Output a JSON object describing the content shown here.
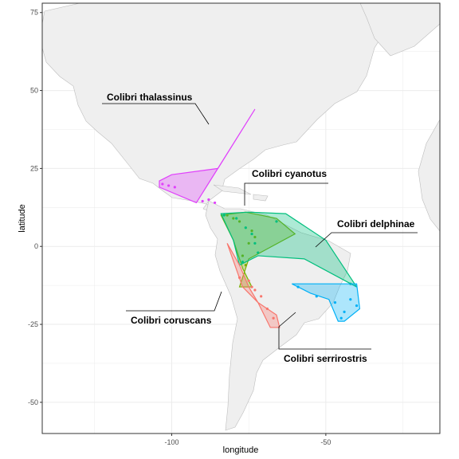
{
  "axes": {
    "x_label": "longitude",
    "y_label": "latitude",
    "x_ticks": [
      {
        "value": -100,
        "label": "-100"
      },
      {
        "value": -50,
        "label": "-50"
      }
    ],
    "y_ticks": [
      {
        "value": 75,
        "label": "75"
      },
      {
        "value": 50,
        "label": "50"
      },
      {
        "value": 25,
        "label": "25"
      },
      {
        "value": 0,
        "label": "0"
      },
      {
        "value": -25,
        "label": "-25"
      },
      {
        "value": -50,
        "label": "-50"
      }
    ],
    "xlim": [
      -142,
      -13
    ],
    "ylim": [
      -60,
      78
    ],
    "grid": true
  },
  "map": {
    "land_color": "#efefef",
    "border_color": "#bdbdbd",
    "panel_border_color": "#333333",
    "grid_color": "#ebebeb"
  },
  "species": [
    {
      "name": "Colibri thalassinus",
      "color": "#e040fb",
      "label_anchor_lon": -118,
      "label_anchor_lat": 48
    },
    {
      "name": "Colibri cyanotus",
      "color": "#7cae00",
      "label_anchor_lon": -65,
      "label_anchor_lat": 22
    },
    {
      "name": "Colibri delphinae",
      "color": "#00bf7d",
      "label_anchor_lon": -32,
      "label_anchor_lat": 7
    },
    {
      "name": "Colibri coruscans",
      "color": "#f8766d",
      "label_anchor_lon": -108,
      "label_anchor_lat": -24
    },
    {
      "name": "Colibri serrirostris",
      "color": "#00b0f6",
      "label_anchor_lon": -42,
      "label_anchor_lat": -36
    }
  ]
}
